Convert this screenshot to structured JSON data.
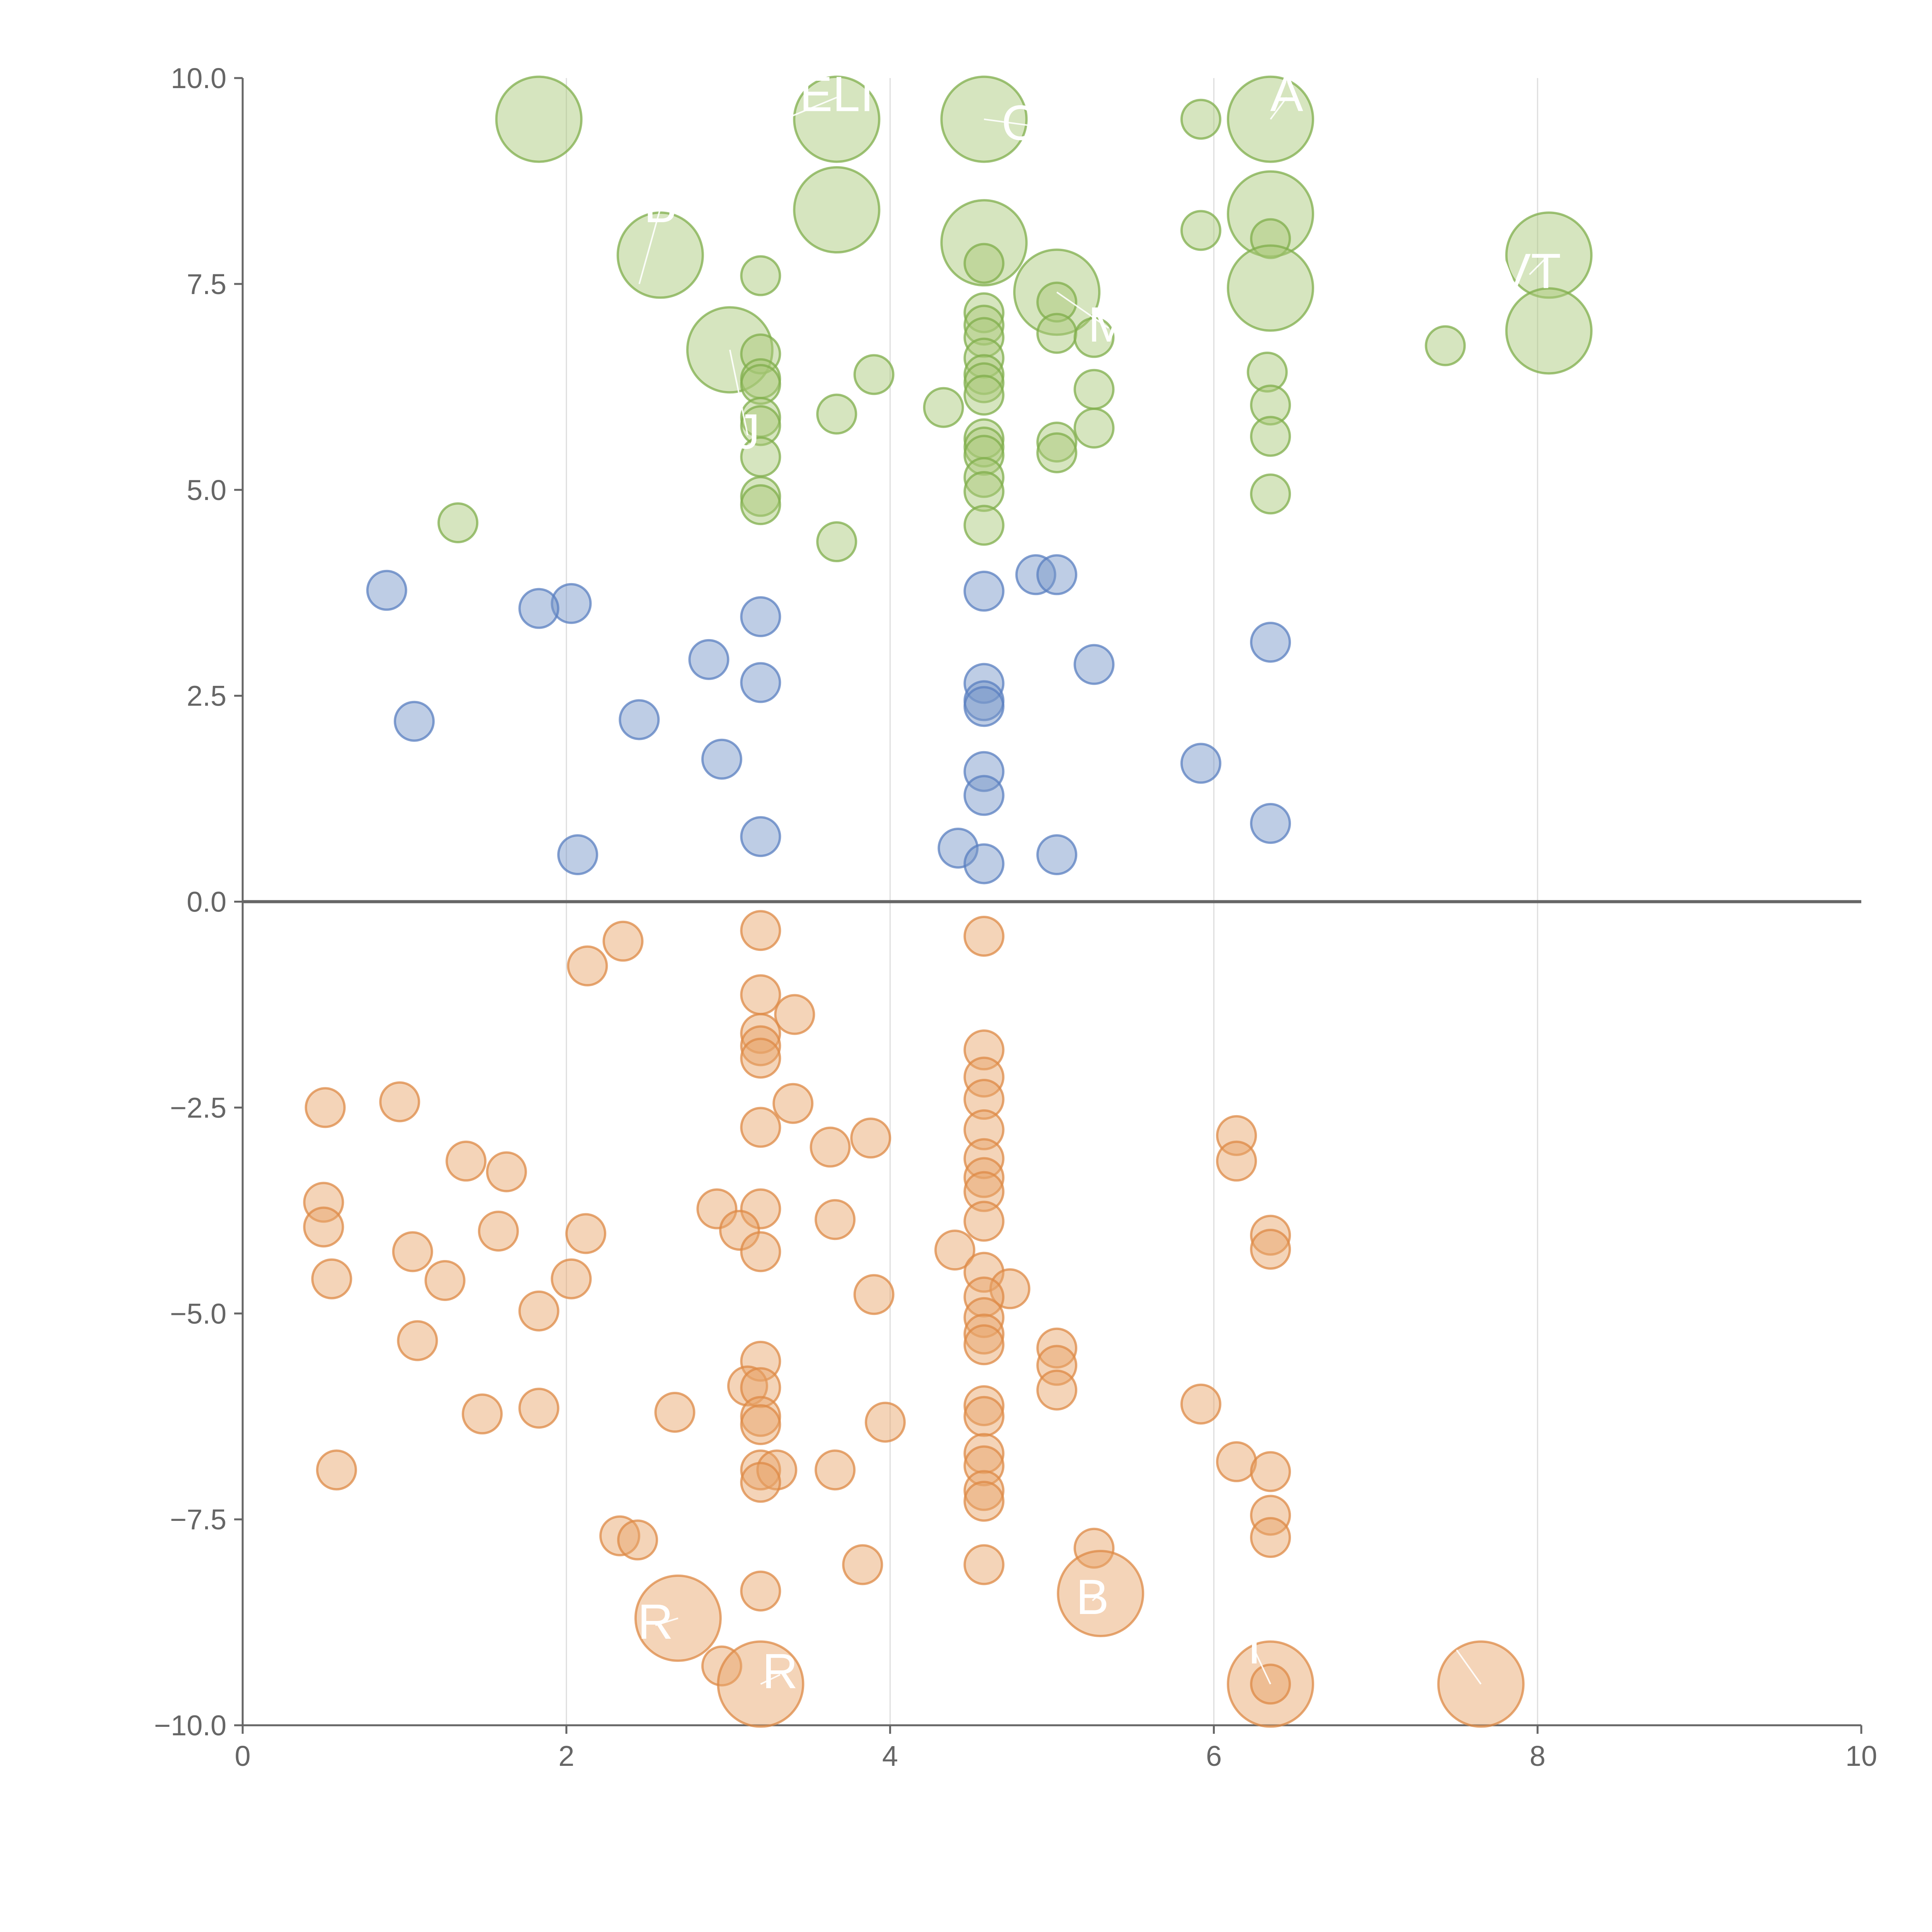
{
  "chart_data": {
    "type": "scatter",
    "title": "",
    "xlabel": "",
    "ylabel": "",
    "xlim": [
      0,
      10
    ],
    "ylim": [
      -10,
      10
    ],
    "x_ticks": [
      0,
      2,
      4,
      6,
      8,
      10
    ],
    "x_tick_labels": [
      "0",
      "2",
      "4",
      "6",
      "8",
      "10"
    ],
    "y_ticks": [
      10,
      7.5,
      5,
      2.5,
      0,
      -2.5,
      -5,
      -7.5,
      -10
    ],
    "y_tick_labels": [
      "10.0",
      "7.5",
      "5.0",
      "2.5",
      "0.0",
      "−2.5",
      "−5.0",
      "−7.5",
      "−10.0"
    ],
    "vertical_gridlines": [
      2,
      4,
      6,
      8
    ],
    "reference_line_y": 0,
    "colors": {
      "high": "#a9c97a",
      "mid": "#7896c8",
      "low": "#e9a66a",
      "axis": "#666666",
      "grid": "#dddddd"
    },
    "series": [
      {
        "name": "high",
        "points": [
          {
            "x": 1.83,
            "y": 9.5,
            "size": 2.2
          },
          {
            "x": 3.67,
            "y": 9.5,
            "size": 2.2
          },
          {
            "x": 4.58,
            "y": 9.5,
            "size": 2.2
          },
          {
            "x": 6.35,
            "y": 9.5,
            "size": 2.2
          },
          {
            "x": 5.92,
            "y": 9.5,
            "size": 1
          },
          {
            "x": 3.67,
            "y": 8.4,
            "size": 2.2
          },
          {
            "x": 4.58,
            "y": 8.0,
            "size": 2.2
          },
          {
            "x": 6.35,
            "y": 8.35,
            "size": 2.2
          },
          {
            "x": 5.92,
            "y": 8.15,
            "size": 1
          },
          {
            "x": 6.35,
            "y": 8.05,
            "size": 1
          },
          {
            "x": 2.58,
            "y": 7.85,
            "size": 2.2
          },
          {
            "x": 8.07,
            "y": 7.85,
            "size": 2.2
          },
          {
            "x": 4.58,
            "y": 7.75,
            "size": 1
          },
          {
            "x": 3.2,
            "y": 7.6,
            "size": 1
          },
          {
            "x": 5.03,
            "y": 7.4,
            "size": 2.2
          },
          {
            "x": 6.35,
            "y": 7.45,
            "size": 2.2
          },
          {
            "x": 5.03,
            "y": 7.28,
            "size": 1
          },
          {
            "x": 4.58,
            "y": 7.15,
            "size": 1
          },
          {
            "x": 4.58,
            "y": 7.0,
            "size": 1
          },
          {
            "x": 8.07,
            "y": 6.93,
            "size": 2.2
          },
          {
            "x": 5.03,
            "y": 6.9,
            "size": 1
          },
          {
            "x": 5.26,
            "y": 6.85,
            "size": 1
          },
          {
            "x": 4.58,
            "y": 6.85,
            "size": 1
          },
          {
            "x": 7.43,
            "y": 6.75,
            "size": 1
          },
          {
            "x": 3.01,
            "y": 6.7,
            "size": 2.2
          },
          {
            "x": 3.2,
            "y": 6.65,
            "size": 1
          },
          {
            "x": 4.58,
            "y": 6.6,
            "size": 1
          },
          {
            "x": 3.9,
            "y": 6.4,
            "size": 1
          },
          {
            "x": 4.58,
            "y": 6.4,
            "size": 1
          },
          {
            "x": 6.33,
            "y": 6.43,
            "size": 1
          },
          {
            "x": 3.2,
            "y": 6.35,
            "size": 1
          },
          {
            "x": 3.2,
            "y": 6.28,
            "size": 1
          },
          {
            "x": 4.58,
            "y": 6.3,
            "size": 1
          },
          {
            "x": 5.26,
            "y": 6.22,
            "size": 1
          },
          {
            "x": 4.58,
            "y": 6.15,
            "size": 1
          },
          {
            "x": 6.35,
            "y": 6.03,
            "size": 1
          },
          {
            "x": 4.33,
            "y": 6.0,
            "size": 1
          },
          {
            "x": 3.67,
            "y": 5.92,
            "size": 1
          },
          {
            "x": 3.2,
            "y": 5.88,
            "size": 1
          },
          {
            "x": 3.2,
            "y": 5.78,
            "size": 1
          },
          {
            "x": 5.26,
            "y": 5.75,
            "size": 1
          },
          {
            "x": 6.35,
            "y": 5.65,
            "size": 1
          },
          {
            "x": 4.58,
            "y": 5.62,
            "size": 1
          },
          {
            "x": 5.03,
            "y": 5.58,
            "size": 1
          },
          {
            "x": 4.58,
            "y": 5.52,
            "size": 1
          },
          {
            "x": 5.03,
            "y": 5.45,
            "size": 1
          },
          {
            "x": 4.58,
            "y": 5.42,
            "size": 1
          },
          {
            "x": 3.2,
            "y": 5.4,
            "size": 1
          },
          {
            "x": 4.58,
            "y": 5.15,
            "size": 1
          },
          {
            "x": 4.58,
            "y": 4.98,
            "size": 1
          },
          {
            "x": 6.35,
            "y": 4.95,
            "size": 1
          },
          {
            "x": 3.2,
            "y": 4.92,
            "size": 1
          },
          {
            "x": 3.2,
            "y": 4.82,
            "size": 1
          },
          {
            "x": 1.33,
            "y": 4.6,
            "size": 1
          },
          {
            "x": 4.58,
            "y": 4.57,
            "size": 1
          },
          {
            "x": 3.67,
            "y": 4.37,
            "size": 1
          }
        ]
      },
      {
        "name": "mid",
        "points": [
          {
            "x": 4.9,
            "y": 3.97,
            "size": 1
          },
          {
            "x": 5.03,
            "y": 3.97,
            "size": 1
          },
          {
            "x": 0.89,
            "y": 3.78,
            "size": 1
          },
          {
            "x": 4.58,
            "y": 3.77,
            "size": 1
          },
          {
            "x": 2.03,
            "y": 3.62,
            "size": 1
          },
          {
            "x": 1.83,
            "y": 3.56,
            "size": 1
          },
          {
            "x": 3.2,
            "y": 3.46,
            "size": 1
          },
          {
            "x": 6.35,
            "y": 3.15,
            "size": 1
          },
          {
            "x": 2.88,
            "y": 2.94,
            "size": 1
          },
          {
            "x": 5.26,
            "y": 2.88,
            "size": 1
          },
          {
            "x": 3.2,
            "y": 2.66,
            "size": 1
          },
          {
            "x": 4.58,
            "y": 2.65,
            "size": 1
          },
          {
            "x": 4.58,
            "y": 2.44,
            "size": 1
          },
          {
            "x": 4.58,
            "y": 2.37,
            "size": 1
          },
          {
            "x": 1.06,
            "y": 2.19,
            "size": 1
          },
          {
            "x": 2.45,
            "y": 2.21,
            "size": 1
          },
          {
            "x": 2.96,
            "y": 1.73,
            "size": 1
          },
          {
            "x": 5.92,
            "y": 1.68,
            "size": 1
          },
          {
            "x": 4.58,
            "y": 1.58,
            "size": 1
          },
          {
            "x": 4.58,
            "y": 1.29,
            "size": 1
          },
          {
            "x": 6.35,
            "y": 0.95,
            "size": 1
          },
          {
            "x": 3.2,
            "y": 0.79,
            "size": 1
          },
          {
            "x": 4.42,
            "y": 0.65,
            "size": 1
          },
          {
            "x": 2.07,
            "y": 0.57,
            "size": 1
          },
          {
            "x": 5.03,
            "y": 0.57,
            "size": 1
          },
          {
            "x": 4.58,
            "y": 0.46,
            "size": 1
          }
        ]
      },
      {
        "name": "low",
        "points": [
          {
            "x": 3.2,
            "y": -0.35,
            "size": 1
          },
          {
            "x": 4.58,
            "y": -0.42,
            "size": 1
          },
          {
            "x": 2.35,
            "y": -0.48,
            "size": 1
          },
          {
            "x": 2.13,
            "y": -0.78,
            "size": 1
          },
          {
            "x": 3.2,
            "y": -1.13,
            "size": 1
          },
          {
            "x": 3.41,
            "y": -1.37,
            "size": 1
          },
          {
            "x": 3.2,
            "y": -1.6,
            "size": 1
          },
          {
            "x": 3.2,
            "y": -1.75,
            "size": 1
          },
          {
            "x": 4.58,
            "y": -1.8,
            "size": 1
          },
          {
            "x": 3.2,
            "y": -1.9,
            "size": 1
          },
          {
            "x": 4.58,
            "y": -2.13,
            "size": 1
          },
          {
            "x": 4.58,
            "y": -2.4,
            "size": 1
          },
          {
            "x": 0.97,
            "y": -2.43,
            "size": 1
          },
          {
            "x": 3.4,
            "y": -2.45,
            "size": 1
          },
          {
            "x": 0.51,
            "y": -2.5,
            "size": 1
          },
          {
            "x": 3.2,
            "y": -2.74,
            "size": 1
          },
          {
            "x": 4.58,
            "y": -2.77,
            "size": 1
          },
          {
            "x": 6.14,
            "y": -2.84,
            "size": 1
          },
          {
            "x": 3.88,
            "y": -2.87,
            "size": 1
          },
          {
            "x": 3.63,
            "y": -2.98,
            "size": 1
          },
          {
            "x": 4.58,
            "y": -3.12,
            "size": 1
          },
          {
            "x": 6.14,
            "y": -3.15,
            "size": 1
          },
          {
            "x": 1.38,
            "y": -3.15,
            "size": 1
          },
          {
            "x": 1.63,
            "y": -3.28,
            "size": 1
          },
          {
            "x": 4.58,
            "y": -3.35,
            "size": 1
          },
          {
            "x": 4.58,
            "y": -3.52,
            "size": 1
          },
          {
            "x": 0.5,
            "y": -3.65,
            "size": 1
          },
          {
            "x": 2.93,
            "y": -3.73,
            "size": 1
          },
          {
            "x": 3.2,
            "y": -3.73,
            "size": 1
          },
          {
            "x": 3.66,
            "y": -3.86,
            "size": 1
          },
          {
            "x": 4.58,
            "y": -3.88,
            "size": 1
          },
          {
            "x": 0.5,
            "y": -3.95,
            "size": 1
          },
          {
            "x": 1.58,
            "y": -4.0,
            "size": 1
          },
          {
            "x": 2.12,
            "y": -4.03,
            "size": 1
          },
          {
            "x": 3.07,
            "y": -3.99,
            "size": 1
          },
          {
            "x": 6.35,
            "y": -4.05,
            "size": 1
          },
          {
            "x": 6.35,
            "y": -4.22,
            "size": 1
          },
          {
            "x": 1.05,
            "y": -4.25,
            "size": 1
          },
          {
            "x": 3.2,
            "y": -4.25,
            "size": 1
          },
          {
            "x": 4.4,
            "y": -4.23,
            "size": 1
          },
          {
            "x": 0.55,
            "y": -4.58,
            "size": 1
          },
          {
            "x": 1.25,
            "y": -4.6,
            "size": 1
          },
          {
            "x": 2.03,
            "y": -4.58,
            "size": 1
          },
          {
            "x": 4.58,
            "y": -4.5,
            "size": 1
          },
          {
            "x": 4.74,
            "y": -4.7,
            "size": 1
          },
          {
            "x": 4.58,
            "y": -4.8,
            "size": 1
          },
          {
            "x": 3.9,
            "y": -4.77,
            "size": 1
          },
          {
            "x": 1.83,
            "y": -4.97,
            "size": 1
          },
          {
            "x": 4.58,
            "y": -5.05,
            "size": 1
          },
          {
            "x": 4.58,
            "y": -5.25,
            "size": 1
          },
          {
            "x": 1.08,
            "y": -5.33,
            "size": 1
          },
          {
            "x": 4.58,
            "y": -5.38,
            "size": 1
          },
          {
            "x": 5.03,
            "y": -5.42,
            "size": 1
          },
          {
            "x": 5.03,
            "y": -5.63,
            "size": 1
          },
          {
            "x": 3.2,
            "y": -5.58,
            "size": 1
          },
          {
            "x": 3.12,
            "y": -5.88,
            "size": 1
          },
          {
            "x": 3.2,
            "y": -5.9,
            "size": 1
          },
          {
            "x": 5.03,
            "y": -5.93,
            "size": 1
          },
          {
            "x": 4.58,
            "y": -6.12,
            "size": 1
          },
          {
            "x": 5.92,
            "y": -6.1,
            "size": 1
          },
          {
            "x": 1.83,
            "y": -6.15,
            "size": 1
          },
          {
            "x": 2.67,
            "y": -6.2,
            "size": 1
          },
          {
            "x": 1.48,
            "y": -6.22,
            "size": 1
          },
          {
            "x": 4.58,
            "y": -6.25,
            "size": 1
          },
          {
            "x": 3.2,
            "y": -6.25,
            "size": 1
          },
          {
            "x": 3.2,
            "y": -6.35,
            "size": 1
          },
          {
            "x": 3.97,
            "y": -6.32,
            "size": 1
          },
          {
            "x": 4.58,
            "y": -6.7,
            "size": 1
          },
          {
            "x": 6.14,
            "y": -6.8,
            "size": 1
          },
          {
            "x": 4.58,
            "y": -6.85,
            "size": 1
          },
          {
            "x": 0.58,
            "y": -6.9,
            "size": 1
          },
          {
            "x": 3.2,
            "y": -6.9,
            "size": 1
          },
          {
            "x": 3.3,
            "y": -6.9,
            "size": 1
          },
          {
            "x": 3.66,
            "y": -6.9,
            "size": 1
          },
          {
            "x": 6.35,
            "y": -6.92,
            "size": 1
          },
          {
            "x": 3.2,
            "y": -7.05,
            "size": 1
          },
          {
            "x": 4.58,
            "y": -7.15,
            "size": 1
          },
          {
            "x": 4.58,
            "y": -7.28,
            "size": 1
          },
          {
            "x": 6.35,
            "y": -7.45,
            "size": 1
          },
          {
            "x": 2.33,
            "y": -7.7,
            "size": 1
          },
          {
            "x": 2.44,
            "y": -7.75,
            "size": 1
          },
          {
            "x": 6.35,
            "y": -7.72,
            "size": 1
          },
          {
            "x": 5.26,
            "y": -7.85,
            "size": 1
          },
          {
            "x": 3.83,
            "y": -8.05,
            "size": 1
          },
          {
            "x": 4.58,
            "y": -8.05,
            "size": 1
          },
          {
            "x": 3.2,
            "y": -8.37,
            "size": 1
          },
          {
            "x": 5.3,
            "y": -8.4,
            "size": 2.2
          },
          {
            "x": 2.69,
            "y": -8.7,
            "size": 2.2
          },
          {
            "x": 2.96,
            "y": -9.28,
            "size": 1
          },
          {
            "x": 3.2,
            "y": -9.5,
            "size": 2.2
          },
          {
            "x": 6.35,
            "y": -9.5,
            "size": 2.2
          },
          {
            "x": 7.65,
            "y": -9.5,
            "size": 2.2
          },
          {
            "x": 6.35,
            "y": -9.5,
            "size": 1
          }
        ]
      }
    ],
    "annotations": [
      {
        "text": "ELI",
        "x": 3.67,
        "y": 9.6,
        "ax": 3.1,
        "ay": 9.3
      },
      {
        "text": "CA",
        "x": 4.9,
        "y": 9.25,
        "ax": 4.58,
        "ay": 9.5
      },
      {
        "text": "A",
        "x": 6.45,
        "y": 9.6,
        "ax": 6.35,
        "ay": 9.5
      },
      {
        "text": "B",
        "x": 2.58,
        "y": 8.25,
        "ax": 2.45,
        "ay": 7.5
      },
      {
        "text": "VT",
        "x": 7.95,
        "y": 7.45,
        "ax": 8.07,
        "ay": 7.85
      },
      {
        "text": "M",
        "x": 5.35,
        "y": 6.8,
        "ax": 5.03,
        "ay": 7.4
      },
      {
        "text": "J",
        "x": 3.12,
        "y": 5.5,
        "ax": 3.01,
        "ay": 6.7
      },
      {
        "text": "B",
        "x": 5.25,
        "y": -8.65,
        "ax": 5.3,
        "ay": -8.4
      },
      {
        "text": "R",
        "x": 2.55,
        "y": -8.95,
        "ax": 2.69,
        "ay": -8.7
      },
      {
        "text": "R",
        "x": 3.32,
        "y": -9.55,
        "ax": 3.2,
        "ay": -9.5
      },
      {
        "text": "T",
        "x": 6.25,
        "y": -9.25,
        "ax": 6.35,
        "ay": -9.5
      },
      {
        "text": "",
        "x": 7.5,
        "y": -9.25,
        "ax": 7.65,
        "ay": -9.5
      }
    ]
  }
}
